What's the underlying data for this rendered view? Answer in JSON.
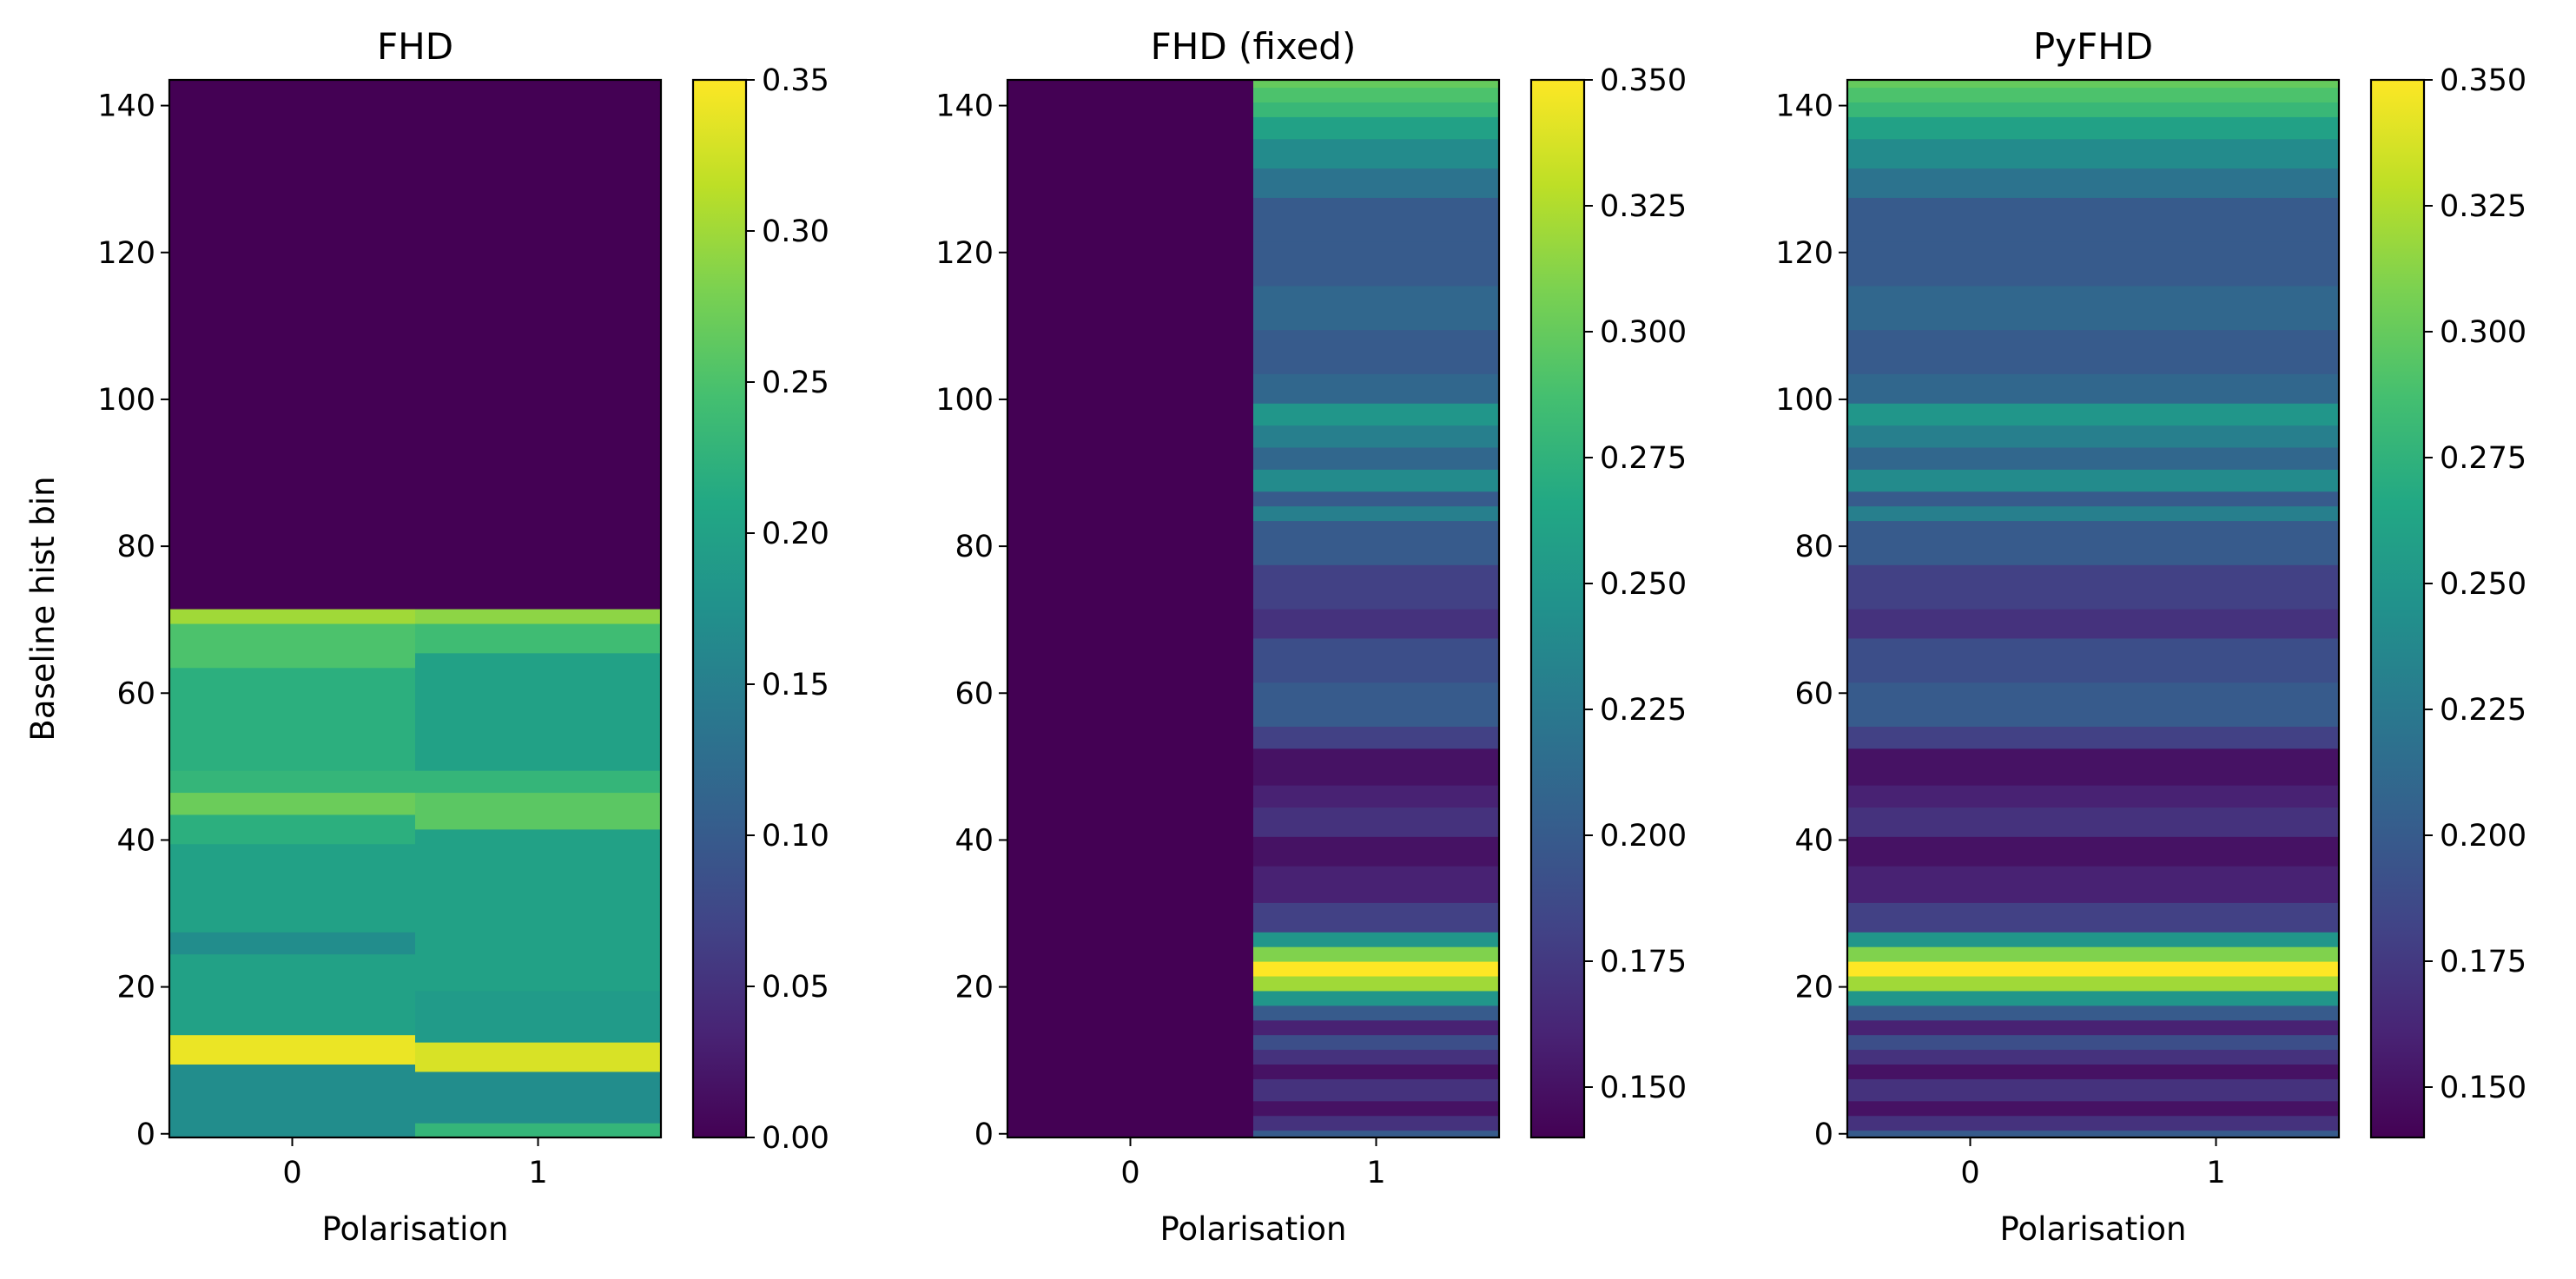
{
  "chart_data": [
    {
      "type": "heatmap",
      "title": "FHD",
      "xlabel": "Polarisation",
      "ylabel": "Baseline hist bin",
      "x_categories": [
        "0",
        "1"
      ],
      "y_ticks": [
        0,
        20,
        40,
        60,
        80,
        100,
        120,
        140
      ],
      "ylim": [
        0,
        144
      ],
      "grid": false,
      "colormap": "viridis",
      "colorbar": {
        "min": 0.0,
        "max": 0.35,
        "ticks": [
          "0.00",
          "0.05",
          "0.10",
          "0.15",
          "0.20",
          "0.25",
          "0.30",
          "0.35"
        ]
      },
      "columns": [
        {
          "segments": [
            {
              "from": 0,
              "to": 10,
              "value": 0.17
            },
            {
              "from": 10,
              "to": 14,
              "value": 0.34
            },
            {
              "from": 14,
              "to": 25,
              "value": 0.2
            },
            {
              "from": 25,
              "to": 28,
              "value": 0.17
            },
            {
              "from": 28,
              "to": 40,
              "value": 0.2
            },
            {
              "from": 40,
              "to": 44,
              "value": 0.22
            },
            {
              "from": 44,
              "to": 47,
              "value": 0.27
            },
            {
              "from": 47,
              "to": 50,
              "value": 0.23
            },
            {
              "from": 50,
              "to": 64,
              "value": 0.22
            },
            {
              "from": 64,
              "to": 70,
              "value": 0.25
            },
            {
              "from": 70,
              "to": 72,
              "value": 0.3
            },
            {
              "from": 72,
              "to": 144,
              "value": 0.0
            }
          ]
        },
        {
          "segments": [
            {
              "from": 0,
              "to": 2,
              "value": 0.23
            },
            {
              "from": 2,
              "to": 9,
              "value": 0.17
            },
            {
              "from": 9,
              "to": 13,
              "value": 0.33
            },
            {
              "from": 13,
              "to": 20,
              "value": 0.19
            },
            {
              "from": 20,
              "to": 30,
              "value": 0.2
            },
            {
              "from": 30,
              "to": 42,
              "value": 0.2
            },
            {
              "from": 42,
              "to": 47,
              "value": 0.26
            },
            {
              "from": 47,
              "to": 50,
              "value": 0.23
            },
            {
              "from": 50,
              "to": 66,
              "value": 0.2
            },
            {
              "from": 66,
              "to": 70,
              "value": 0.24
            },
            {
              "from": 70,
              "to": 72,
              "value": 0.29
            },
            {
              "from": 72,
              "to": 144,
              "value": 0.0
            }
          ]
        }
      ]
    },
    {
      "type": "heatmap",
      "title": "FHD (fixed)",
      "xlabel": "Polarisation",
      "ylabel": "",
      "x_categories": [
        "0",
        "1"
      ],
      "y_ticks": [
        0,
        20,
        40,
        60,
        80,
        100,
        120,
        140
      ],
      "ylim": [
        0,
        144
      ],
      "grid": false,
      "colormap": "viridis",
      "colorbar": {
        "min": 0.14,
        "max": 0.35,
        "ticks": [
          "0.150",
          "0.175",
          "0.200",
          "0.225",
          "0.250",
          "0.275",
          "0.300",
          "0.325",
          "0.350"
        ]
      },
      "columns": [
        {
          "segments": [
            {
              "from": 0,
              "to": 144,
              "value": 0.14
            }
          ]
        },
        {
          "segments": [
            {
              "from": 0,
              "to": 1,
              "value": 0.2
            },
            {
              "from": 1,
              "to": 3,
              "value": 0.17
            },
            {
              "from": 3,
              "to": 5,
              "value": 0.15
            },
            {
              "from": 5,
              "to": 8,
              "value": 0.17
            },
            {
              "from": 8,
              "to": 10,
              "value": 0.15
            },
            {
              "from": 10,
              "to": 12,
              "value": 0.17
            },
            {
              "from": 12,
              "to": 14,
              "value": 0.19
            },
            {
              "from": 14,
              "to": 16,
              "value": 0.16
            },
            {
              "from": 16,
              "to": 18,
              "value": 0.2
            },
            {
              "from": 18,
              "to": 20,
              "value": 0.25
            },
            {
              "from": 20,
              "to": 22,
              "value": 0.32
            },
            {
              "from": 22,
              "to": 24,
              "value": 0.35
            },
            {
              "from": 24,
              "to": 26,
              "value": 0.31
            },
            {
              "from": 26,
              "to": 28,
              "value": 0.25
            },
            {
              "from": 28,
              "to": 32,
              "value": 0.18
            },
            {
              "from": 32,
              "to": 37,
              "value": 0.16
            },
            {
              "from": 37,
              "to": 41,
              "value": 0.15
            },
            {
              "from": 41,
              "to": 45,
              "value": 0.17
            },
            {
              "from": 45,
              "to": 48,
              "value": 0.16
            },
            {
              "from": 48,
              "to": 50,
              "value": 0.15
            },
            {
              "from": 50,
              "to": 53,
              "value": 0.15
            },
            {
              "from": 53,
              "to": 56,
              "value": 0.18
            },
            {
              "from": 56,
              "to": 62,
              "value": 0.2
            },
            {
              "from": 62,
              "to": 68,
              "value": 0.19
            },
            {
              "from": 68,
              "to": 72,
              "value": 0.17
            },
            {
              "from": 72,
              "to": 78,
              "value": 0.18
            },
            {
              "from": 78,
              "to": 84,
              "value": 0.2
            },
            {
              "from": 84,
              "to": 86,
              "value": 0.23
            },
            {
              "from": 86,
              "to": 88,
              "value": 0.2
            },
            {
              "from": 88,
              "to": 91,
              "value": 0.24
            },
            {
              "from": 91,
              "to": 94,
              "value": 0.21
            },
            {
              "from": 94,
              "to": 97,
              "value": 0.23
            },
            {
              "from": 97,
              "to": 100,
              "value": 0.25
            },
            {
              "from": 100,
              "to": 104,
              "value": 0.21
            },
            {
              "from": 104,
              "to": 110,
              "value": 0.2
            },
            {
              "from": 110,
              "to": 116,
              "value": 0.21
            },
            {
              "from": 116,
              "to": 122,
              "value": 0.2
            },
            {
              "from": 122,
              "to": 128,
              "value": 0.2
            },
            {
              "from": 128,
              "to": 132,
              "value": 0.22
            },
            {
              "from": 132,
              "to": 136,
              "value": 0.24
            },
            {
              "from": 136,
              "to": 139,
              "value": 0.26
            },
            {
              "from": 139,
              "to": 141,
              "value": 0.28
            },
            {
              "from": 141,
              "to": 143,
              "value": 0.29
            },
            {
              "from": 143,
              "to": 144,
              "value": 0.3
            }
          ]
        }
      ]
    },
    {
      "type": "heatmap",
      "title": "PyFHD",
      "xlabel": "Polarisation",
      "ylabel": "",
      "x_categories": [
        "0",
        "1"
      ],
      "y_ticks": [
        0,
        20,
        40,
        60,
        80,
        100,
        120,
        140
      ],
      "ylim": [
        0,
        144
      ],
      "grid": false,
      "colormap": "viridis",
      "colorbar": {
        "min": 0.14,
        "max": 0.35,
        "ticks": [
          "0.150",
          "0.175",
          "0.200",
          "0.225",
          "0.250",
          "0.275",
          "0.300",
          "0.325",
          "0.350"
        ]
      },
      "columns": [
        {
          "segments": [
            {
              "from": 0,
              "to": 1,
              "value": 0.2
            },
            {
              "from": 1,
              "to": 3,
              "value": 0.17
            },
            {
              "from": 3,
              "to": 5,
              "value": 0.15
            },
            {
              "from": 5,
              "to": 8,
              "value": 0.17
            },
            {
              "from": 8,
              "to": 10,
              "value": 0.15
            },
            {
              "from": 10,
              "to": 12,
              "value": 0.17
            },
            {
              "from": 12,
              "to": 14,
              "value": 0.19
            },
            {
              "from": 14,
              "to": 16,
              "value": 0.16
            },
            {
              "from": 16,
              "to": 18,
              "value": 0.2
            },
            {
              "from": 18,
              "to": 20,
              "value": 0.25
            },
            {
              "from": 20,
              "to": 22,
              "value": 0.32
            },
            {
              "from": 22,
              "to": 24,
              "value": 0.35
            },
            {
              "from": 24,
              "to": 26,
              "value": 0.31
            },
            {
              "from": 26,
              "to": 28,
              "value": 0.25
            },
            {
              "from": 28,
              "to": 32,
              "value": 0.18
            },
            {
              "from": 32,
              "to": 37,
              "value": 0.16
            },
            {
              "from": 37,
              "to": 41,
              "value": 0.15
            },
            {
              "from": 41,
              "to": 45,
              "value": 0.17
            },
            {
              "from": 45,
              "to": 48,
              "value": 0.16
            },
            {
              "from": 48,
              "to": 50,
              "value": 0.15
            },
            {
              "from": 50,
              "to": 53,
              "value": 0.15
            },
            {
              "from": 53,
              "to": 56,
              "value": 0.18
            },
            {
              "from": 56,
              "to": 62,
              "value": 0.2
            },
            {
              "from": 62,
              "to": 68,
              "value": 0.19
            },
            {
              "from": 68,
              "to": 72,
              "value": 0.17
            },
            {
              "from": 72,
              "to": 78,
              "value": 0.18
            },
            {
              "from": 78,
              "to": 84,
              "value": 0.2
            },
            {
              "from": 84,
              "to": 86,
              "value": 0.23
            },
            {
              "from": 86,
              "to": 88,
              "value": 0.2
            },
            {
              "from": 88,
              "to": 91,
              "value": 0.24
            },
            {
              "from": 91,
              "to": 94,
              "value": 0.21
            },
            {
              "from": 94,
              "to": 97,
              "value": 0.23
            },
            {
              "from": 97,
              "to": 100,
              "value": 0.25
            },
            {
              "from": 100,
              "to": 104,
              "value": 0.21
            },
            {
              "from": 104,
              "to": 110,
              "value": 0.2
            },
            {
              "from": 110,
              "to": 116,
              "value": 0.21
            },
            {
              "from": 116,
              "to": 122,
              "value": 0.2
            },
            {
              "from": 122,
              "to": 128,
              "value": 0.2
            },
            {
              "from": 128,
              "to": 132,
              "value": 0.22
            },
            {
              "from": 132,
              "to": 136,
              "value": 0.24
            },
            {
              "from": 136,
              "to": 139,
              "value": 0.26
            },
            {
              "from": 139,
              "to": 141,
              "value": 0.28
            },
            {
              "from": 141,
              "to": 143,
              "value": 0.29
            },
            {
              "from": 143,
              "to": 144,
              "value": 0.3
            }
          ]
        },
        {
          "segments": [
            {
              "from": 0,
              "to": 1,
              "value": 0.2
            },
            {
              "from": 1,
              "to": 3,
              "value": 0.17
            },
            {
              "from": 3,
              "to": 5,
              "value": 0.15
            },
            {
              "from": 5,
              "to": 8,
              "value": 0.17
            },
            {
              "from": 8,
              "to": 10,
              "value": 0.15
            },
            {
              "from": 10,
              "to": 12,
              "value": 0.17
            },
            {
              "from": 12,
              "to": 14,
              "value": 0.19
            },
            {
              "from": 14,
              "to": 16,
              "value": 0.16
            },
            {
              "from": 16,
              "to": 18,
              "value": 0.2
            },
            {
              "from": 18,
              "to": 20,
              "value": 0.25
            },
            {
              "from": 20,
              "to": 22,
              "value": 0.32
            },
            {
              "from": 22,
              "to": 24,
              "value": 0.35
            },
            {
              "from": 24,
              "to": 26,
              "value": 0.31
            },
            {
              "from": 26,
              "to": 28,
              "value": 0.25
            },
            {
              "from": 28,
              "to": 32,
              "value": 0.18
            },
            {
              "from": 32,
              "to": 37,
              "value": 0.16
            },
            {
              "from": 37,
              "to": 41,
              "value": 0.15
            },
            {
              "from": 41,
              "to": 45,
              "value": 0.17
            },
            {
              "from": 45,
              "to": 48,
              "value": 0.16
            },
            {
              "from": 48,
              "to": 50,
              "value": 0.15
            },
            {
              "from": 50,
              "to": 53,
              "value": 0.15
            },
            {
              "from": 53,
              "to": 56,
              "value": 0.18
            },
            {
              "from": 56,
              "to": 62,
              "value": 0.2
            },
            {
              "from": 62,
              "to": 68,
              "value": 0.19
            },
            {
              "from": 68,
              "to": 72,
              "value": 0.17
            },
            {
              "from": 72,
              "to": 78,
              "value": 0.18
            },
            {
              "from": 78,
              "to": 84,
              "value": 0.2
            },
            {
              "from": 84,
              "to": 86,
              "value": 0.23
            },
            {
              "from": 86,
              "to": 88,
              "value": 0.2
            },
            {
              "from": 88,
              "to": 91,
              "value": 0.24
            },
            {
              "from": 91,
              "to": 94,
              "value": 0.21
            },
            {
              "from": 94,
              "to": 97,
              "value": 0.23
            },
            {
              "from": 97,
              "to": 100,
              "value": 0.25
            },
            {
              "from": 100,
              "to": 104,
              "value": 0.21
            },
            {
              "from": 104,
              "to": 110,
              "value": 0.2
            },
            {
              "from": 110,
              "to": 116,
              "value": 0.21
            },
            {
              "from": 116,
              "to": 122,
              "value": 0.2
            },
            {
              "from": 122,
              "to": 128,
              "value": 0.2
            },
            {
              "from": 128,
              "to": 132,
              "value": 0.22
            },
            {
              "from": 132,
              "to": 136,
              "value": 0.24
            },
            {
              "from": 136,
              "to": 139,
              "value": 0.26
            },
            {
              "from": 139,
              "to": 141,
              "value": 0.28
            },
            {
              "from": 141,
              "to": 143,
              "value": 0.29
            },
            {
              "from": 143,
              "to": 144,
              "value": 0.3
            }
          ]
        }
      ]
    }
  ]
}
